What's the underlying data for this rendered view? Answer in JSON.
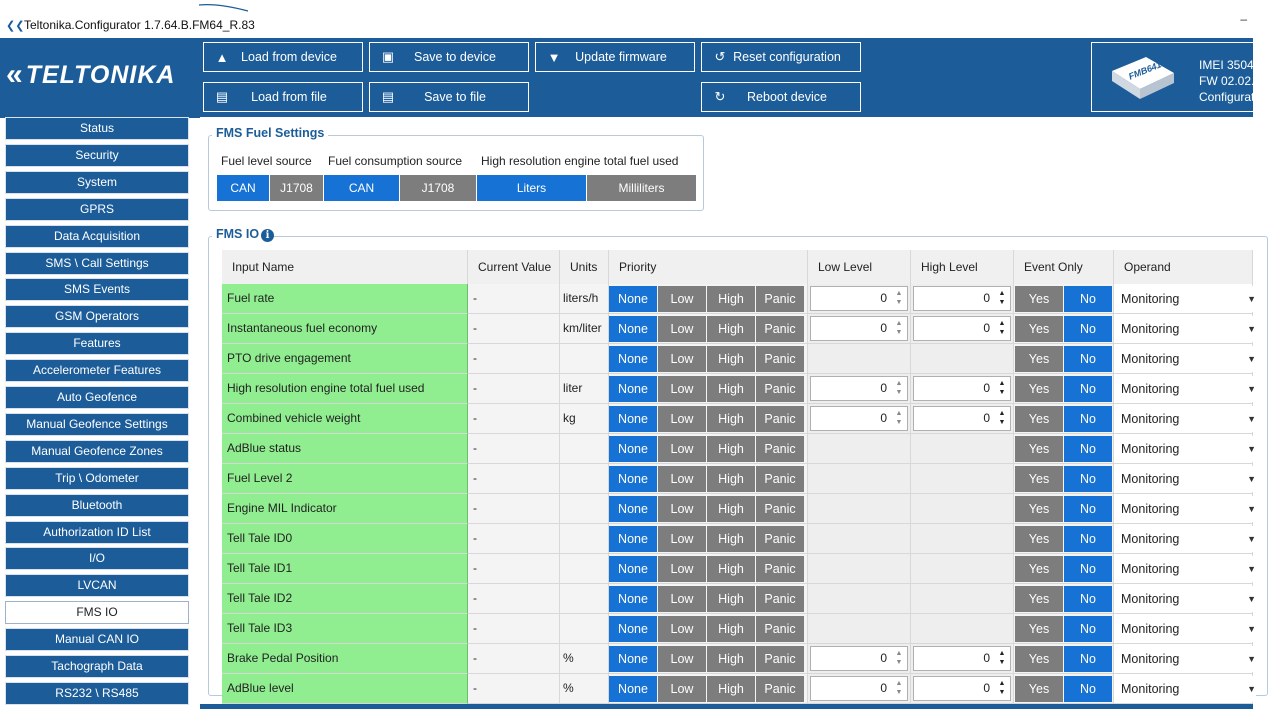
{
  "window": {
    "title": "Teltonika.Configurator 1.7.64.B.FM64_R.83",
    "minimize": "–"
  },
  "brand": {
    "logo_text": "TELTONIKA",
    "logo_mark": "«"
  },
  "toolbar": {
    "load_from_device": "Load from device",
    "save_to_device": "Save to device",
    "update_firmware": "Update firmware",
    "reset_configuration": "Reset configuration",
    "load_from_file": "Load from file",
    "save_to_file": "Save to file",
    "reboot_device": "Reboot device"
  },
  "device": {
    "model": "FMB641",
    "imei": "IMEI 3504",
    "fw": "FW 02.02.",
    "config": "Configurat"
  },
  "sidebar": {
    "items": [
      "Status",
      "Security",
      "System",
      "GPRS",
      "Data Acquisition",
      "SMS \\ Call Settings",
      "SMS Events",
      "GSM Operators",
      "Features",
      "Accelerometer Features",
      "Auto Geofence",
      "Manual Geofence Settings",
      "Manual Geofence Zones",
      "Trip \\ Odometer",
      "Bluetooth",
      "Authorization ID List",
      "I/O",
      "LVCAN",
      "FMS IO",
      "Manual CAN IO",
      "Tachograph Data",
      "RS232 \\ RS485"
    ],
    "active": "FMS IO"
  },
  "fuel_settings": {
    "title": "FMS Fuel Settings",
    "fuel_level_source": {
      "label": "Fuel level source",
      "options": [
        "CAN",
        "J1708"
      ],
      "selected": "CAN"
    },
    "fuel_consumption_source": {
      "label": "Fuel consumption source",
      "options": [
        "CAN",
        "J1708"
      ],
      "selected": "CAN"
    },
    "high_res_fuel": {
      "label": "High resolution engine total fuel used",
      "options": [
        "Liters",
        "Milliliters"
      ],
      "selected": "Liters"
    }
  },
  "fms_io": {
    "title": "FMS IO",
    "info": "i",
    "columns": [
      "Input Name",
      "Current Value",
      "Units",
      "Priority",
      "Low Level",
      "High Level",
      "Event Only",
      "Operand"
    ],
    "priority_options": [
      "None",
      "Low",
      "High",
      "Panic"
    ],
    "event_options": [
      "Yes",
      "No"
    ],
    "rows": [
      {
        "name": "Fuel rate",
        "current": "-",
        "units": "liters/h",
        "levels": true,
        "low": "0",
        "high": "0",
        "operand": "Monitoring"
      },
      {
        "name": "Instantaneous fuel economy",
        "current": "-",
        "units": "km/liter",
        "levels": true,
        "low": "0",
        "high": "0",
        "operand": "Monitoring"
      },
      {
        "name": "PTO drive engagement",
        "current": "-",
        "units": "",
        "levels": false,
        "low": "",
        "high": "",
        "operand": "Monitoring"
      },
      {
        "name": "High resolution engine total fuel used",
        "current": "-",
        "units": "liter",
        "levels": true,
        "low": "0",
        "high": "0",
        "operand": "Monitoring"
      },
      {
        "name": "Combined vehicle weight",
        "current": "-",
        "units": "kg",
        "levels": true,
        "low": "0",
        "high": "0",
        "operand": "Monitoring"
      },
      {
        "name": "AdBlue status",
        "current": "-",
        "units": "",
        "levels": false,
        "low": "",
        "high": "",
        "operand": "Monitoring"
      },
      {
        "name": "Fuel Level 2",
        "current": "-",
        "units": "",
        "levels": false,
        "low": "",
        "high": "",
        "operand": "Monitoring"
      },
      {
        "name": "Engine MIL Indicator",
        "current": "-",
        "units": "",
        "levels": false,
        "low": "",
        "high": "",
        "operand": "Monitoring"
      },
      {
        "name": "Tell Tale ID0",
        "current": "-",
        "units": "",
        "levels": false,
        "low": "",
        "high": "",
        "operand": "Monitoring"
      },
      {
        "name": "Tell Tale ID1",
        "current": "-",
        "units": "",
        "levels": false,
        "low": "",
        "high": "",
        "operand": "Monitoring"
      },
      {
        "name": "Tell Tale ID2",
        "current": "-",
        "units": "",
        "levels": false,
        "low": "",
        "high": "",
        "operand": "Monitoring"
      },
      {
        "name": "Tell Tale ID3",
        "current": "-",
        "units": "",
        "levels": false,
        "low": "",
        "high": "",
        "operand": "Monitoring"
      },
      {
        "name": "Brake Pedal Position",
        "current": "-",
        "units": "%",
        "levels": true,
        "low": "0",
        "high": "0",
        "operand": "Monitoring"
      },
      {
        "name": "AdBlue level",
        "current": "-",
        "units": "%",
        "levels": true,
        "low": "0",
        "high": "0",
        "operand": "Monitoring"
      }
    ]
  },
  "colors": {
    "brand_blue": "#1c5d99",
    "selected_blue": "#1672d4",
    "unselected_gray": "#7d7d7d",
    "name_green": "#90ee90"
  }
}
